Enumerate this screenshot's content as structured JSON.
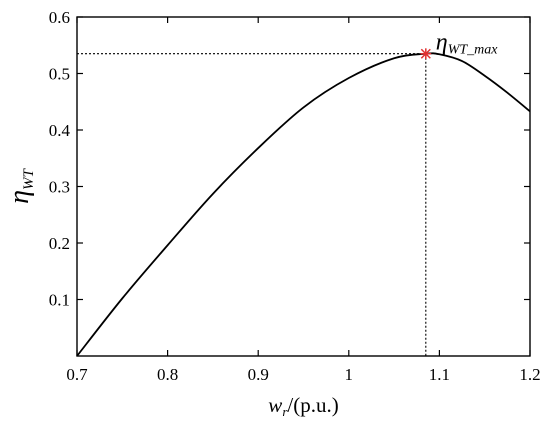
{
  "chart_data": {
    "type": "line",
    "xlabel": {
      "main": "w",
      "sub": "r",
      "suffix": "/(p.u.)"
    },
    "ylabel": {
      "main": "η",
      "sub": "WT"
    },
    "xlim": [
      0.7,
      1.2
    ],
    "ylim": [
      0,
      0.6
    ],
    "x_ticks": [
      "0.7",
      "0.8",
      "0.9",
      "1",
      "1.1",
      "1.2"
    ],
    "y_ticks": [
      "0.1",
      "0.2",
      "0.3",
      "0.4",
      "0.5",
      "0.6"
    ],
    "grid": false,
    "series": [
      {
        "color": "#000000",
        "x": [
          0.7,
          0.75,
          0.8,
          0.85,
          0.9,
          0.95,
          1.0,
          1.05,
          1.085,
          1.1,
          1.125,
          1.15,
          1.175,
          1.2
        ],
        "y": [
          0.0,
          0.102,
          0.196,
          0.287,
          0.368,
          0.44,
          0.492,
          0.527,
          0.535,
          0.534,
          0.522,
          0.496,
          0.466,
          0.433
        ]
      }
    ],
    "annotation": {
      "label_main": "η",
      "label_sub": "WT_max",
      "x": 1.085,
      "y": 0.535,
      "marker_color": "#e03030"
    }
  }
}
